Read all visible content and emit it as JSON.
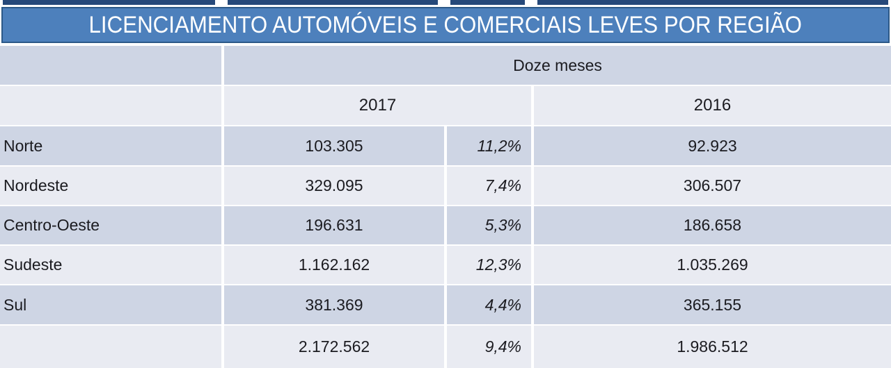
{
  "chart_data": {
    "type": "table",
    "title": "LICENCIAMENTO AUTOMÓVEIS E COMERCIAIS LEVES POR REGIÃO",
    "period_header": "Doze meses",
    "year_columns": [
      "2017",
      "2016"
    ],
    "rows": [
      {
        "region": "Norte",
        "y2017": "103.305",
        "change_pct": "11,2%",
        "y2016": "92.923"
      },
      {
        "region": "Nordeste",
        "y2017": "329.095",
        "change_pct": "7,4%",
        "y2016": "306.507"
      },
      {
        "region": "Centro-Oeste",
        "y2017": "196.631",
        "change_pct": "5,3%",
        "y2016": "186.658"
      },
      {
        "region": "Sudeste",
        "y2017": "1.162.162",
        "change_pct": "12,3%",
        "y2016": "1.035.269"
      },
      {
        "region": "Sul",
        "y2017": "381.369",
        "change_pct": "4,4%",
        "y2016": "365.155"
      }
    ],
    "total": {
      "region": "",
      "y2017": "2.172.562",
      "change_pct": "9,4%",
      "y2016": "1.986.512"
    }
  },
  "colors": {
    "top_strip": "#26497A",
    "title_bar": "#4D80BC",
    "title_bar_border": "#2C5988",
    "title_text": "#FFFFFF",
    "band_dark": "#CED5E4",
    "band_light": "#E9EBF2",
    "cell_text": "#1B1B20",
    "grid_lines": "#FFFFFF"
  }
}
